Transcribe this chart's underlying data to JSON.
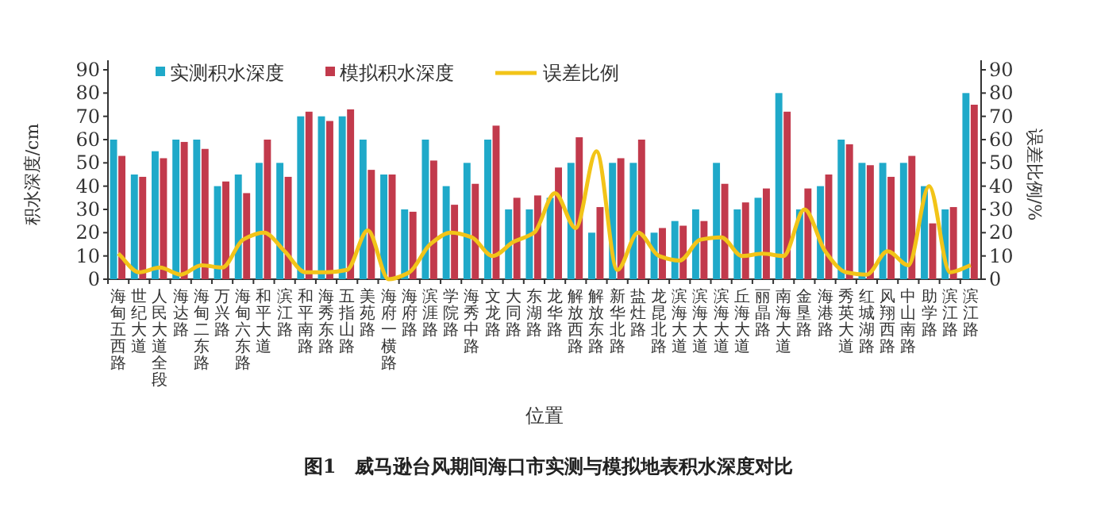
{
  "chart_data": {
    "type": "bar",
    "title": "图1　威马逊台风期间海口市实测与模拟地表积水深度对比",
    "xlabel": "位置",
    "ylabel": "积水深度/cm",
    "y2label": "误差比例/%",
    "categories": [
      "海甸五西路",
      "世纪大道",
      "人民大道全段",
      "海达路",
      "海甸二东路",
      "万兴路",
      "海甸六东路",
      "和平大道",
      "滨江路",
      "和平南路",
      "海秀东路",
      "五指山路",
      "美苑路",
      "海府一横路",
      "海府路",
      "滨涯路",
      "学院路",
      "海秀中路",
      "文龙路",
      "大同路",
      "东湖路",
      "龙华路",
      "解放西路",
      "解放东路",
      "新华北路",
      "盐灶路",
      "龙昆北路",
      "滨海大道",
      "滨海大道",
      "滨海大道",
      "丘海大道",
      "丽晶路",
      "南海大道",
      "金垦路",
      "海港路",
      "秀英大道",
      "红城湖路",
      "风翔西路",
      "中山南路",
      "助学路",
      "滨江路",
      "滨江路"
    ],
    "series": [
      {
        "name": "实测积水深度",
        "color": "#1fa9c9",
        "values": [
          60,
          45,
          55,
          60,
          60,
          40,
          45,
          50,
          50,
          70,
          70,
          70,
          60,
          45,
          30,
          60,
          40,
          50,
          60,
          30,
          30,
          35,
          50,
          20,
          50,
          50,
          20,
          25,
          30,
          50,
          30,
          35,
          80,
          30,
          40,
          60,
          50,
          50,
          50,
          40,
          30,
          80
        ]
      },
      {
        "name": "模拟积水深度",
        "color": "#c23a4c",
        "values": [
          53,
          44,
          52,
          59,
          56,
          42,
          37,
          60,
          44,
          72,
          68,
          73,
          47,
          45,
          29,
          51,
          32,
          41,
          66,
          35,
          36,
          48,
          61,
          31,
          52,
          60,
          22,
          23,
          25,
          41,
          33,
          39,
          72,
          39,
          45,
          58,
          49,
          44,
          53,
          24,
          31,
          75
        ]
      },
      {
        "name": "误差比例",
        "type": "line",
        "axis": "y2",
        "color": "#f2c418",
        "values": [
          11,
          3,
          5,
          2,
          6,
          5,
          17,
          20,
          12,
          3,
          3,
          4,
          21,
          0,
          3,
          15,
          20,
          18,
          10,
          16,
          20,
          37,
          22,
          55,
          4,
          20,
          10,
          8,
          17,
          18,
          10,
          11,
          10,
          30,
          12,
          3,
          2,
          12,
          6,
          40,
          3,
          6
        ]
      }
    ],
    "ylim": [
      0,
      90
    ],
    "yticks": [
      0,
      10,
      20,
      30,
      40,
      50,
      60,
      70,
      80,
      90
    ],
    "y2lim": [
      0,
      90
    ],
    "y2ticks": [
      0,
      10,
      20,
      30,
      40,
      50,
      60,
      70,
      80,
      90
    ],
    "legend": "top",
    "grid": false,
    "marker": "none",
    "line_style": "solid"
  }
}
